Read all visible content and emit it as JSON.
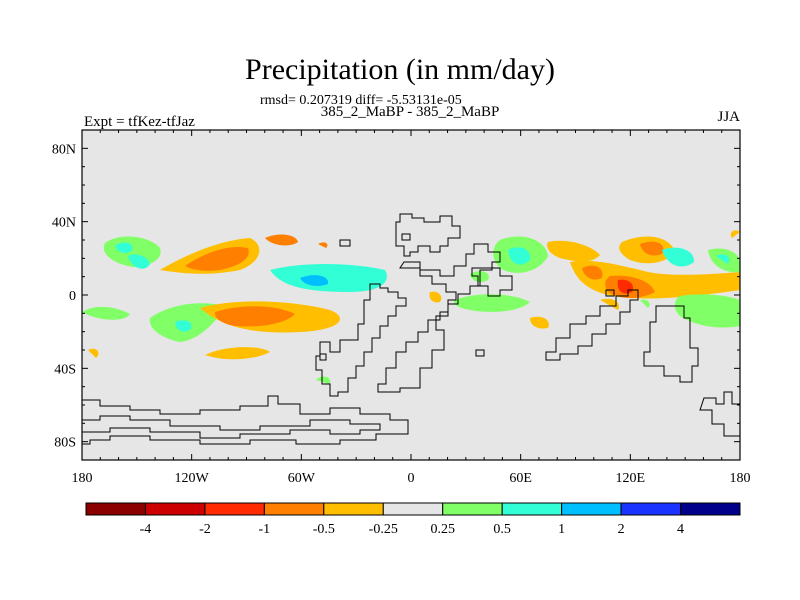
{
  "header": {
    "title": "Precipitation (in mm/day)",
    "stats": "rmsd= 0.207319 diff= -5.53131e-05",
    "subtitle": "385_2_MaBP - 385_2_MaBP",
    "left_label": "Expt = tfKez-tfJaz",
    "right_label": "JJA"
  },
  "axes": {
    "x_ticks": [
      "180",
      "120W",
      "60W",
      "0",
      "60E",
      "120E",
      "180"
    ],
    "y_ticks": [
      "80N",
      "40N",
      "0",
      "40S",
      "80S"
    ]
  },
  "colorbar": {
    "labels": [
      "-4",
      "-2",
      "-1",
      "-0.5",
      "-0.25",
      "0.25",
      "0.5",
      "1",
      "2",
      "4"
    ],
    "colors": [
      "#8b0000",
      "#cc0000",
      "#ff2a00",
      "#ff7f00",
      "#ffbf00",
      "#e6e6e6",
      "#80ff66",
      "#33ffd6",
      "#00bfff",
      "#1a33ff",
      "#00008b"
    ]
  },
  "colors": {
    "background_field": "#e6e6e6",
    "coast": "#000000"
  }
}
